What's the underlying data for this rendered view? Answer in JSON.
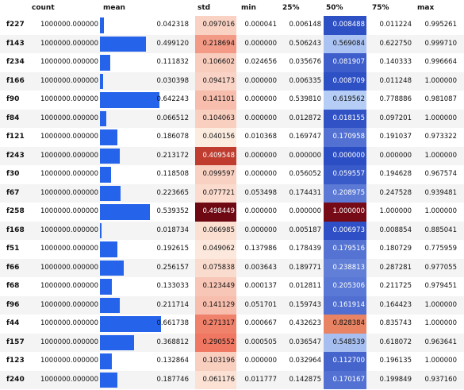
{
  "headers": {
    "count": "count",
    "mean": "mean",
    "std": "std",
    "min": "min",
    "p25": "25%",
    "p50": "50%",
    "p75": "75%",
    "max": "max"
  },
  "rows": [
    {
      "idx": "f227",
      "count": "1000000.000000",
      "mean": "0.042318",
      "std": "0.097016",
      "min": "0.000041",
      "p25": "0.006148",
      "p50": "0.008488",
      "p75": "0.011224",
      "max": "0.995261"
    },
    {
      "idx": "f143",
      "count": "1000000.000000",
      "mean": "0.499120",
      "std": "0.218694",
      "min": "0.000000",
      "p25": "0.506243",
      "p50": "0.569084",
      "p75": "0.622750",
      "max": "0.999710"
    },
    {
      "idx": "f234",
      "count": "1000000.000000",
      "mean": "0.111832",
      "std": "0.106602",
      "min": "0.024656",
      "p25": "0.035676",
      "p50": "0.081907",
      "p75": "0.140333",
      "max": "0.996664"
    },
    {
      "idx": "f166",
      "count": "1000000.000000",
      "mean": "0.030398",
      "std": "0.094173",
      "min": "0.000000",
      "p25": "0.006335",
      "p50": "0.008709",
      "p75": "0.011248",
      "max": "1.000000"
    },
    {
      "idx": "f90",
      "count": "1000000.000000",
      "mean": "0.642243",
      "std": "0.141101",
      "min": "0.000000",
      "p25": "0.539810",
      "p50": "0.619562",
      "p75": "0.778886",
      "max": "0.981087"
    },
    {
      "idx": "f84",
      "count": "1000000.000000",
      "mean": "0.066512",
      "std": "0.104063",
      "min": "0.000000",
      "p25": "0.012872",
      "p50": "0.018155",
      "p75": "0.097201",
      "max": "1.000000"
    },
    {
      "idx": "f121",
      "count": "1000000.000000",
      "mean": "0.186078",
      "std": "0.040156",
      "min": "0.010368",
      "p25": "0.169747",
      "p50": "0.170958",
      "p75": "0.191037",
      "max": "0.973322"
    },
    {
      "idx": "f243",
      "count": "1000000.000000",
      "mean": "0.213172",
      "std": "0.409548",
      "min": "0.000000",
      "p25": "0.000000",
      "p50": "0.000000",
      "p75": "0.000000",
      "max": "1.000000"
    },
    {
      "idx": "f30",
      "count": "1000000.000000",
      "mean": "0.118508",
      "std": "0.099597",
      "min": "0.000000",
      "p25": "0.056052",
      "p50": "0.059557",
      "p75": "0.194628",
      "max": "0.967574"
    },
    {
      "idx": "f67",
      "count": "1000000.000000",
      "mean": "0.223665",
      "std": "0.077721",
      "min": "0.053498",
      "p25": "0.174431",
      "p50": "0.208975",
      "p75": "0.247528",
      "max": "0.939481"
    },
    {
      "idx": "f258",
      "count": "1000000.000000",
      "mean": "0.539352",
      "std": "0.498449",
      "min": "0.000000",
      "p25": "0.000000",
      "p50": "1.000000",
      "p75": "1.000000",
      "max": "1.000000"
    },
    {
      "idx": "f168",
      "count": "1000000.000000",
      "mean": "0.018734",
      "std": "0.066985",
      "min": "0.000000",
      "p25": "0.005187",
      "p50": "0.006973",
      "p75": "0.008854",
      "max": "0.885041"
    },
    {
      "idx": "f51",
      "count": "1000000.000000",
      "mean": "0.192615",
      "std": "0.049062",
      "min": "0.137986",
      "p25": "0.178439",
      "p50": "0.179516",
      "p75": "0.180729",
      "max": "0.775959"
    },
    {
      "idx": "f66",
      "count": "1000000.000000",
      "mean": "0.256157",
      "std": "0.075838",
      "min": "0.003643",
      "p25": "0.189771",
      "p50": "0.238813",
      "p75": "0.287281",
      "max": "0.977055"
    },
    {
      "idx": "f68",
      "count": "1000000.000000",
      "mean": "0.133033",
      "std": "0.123449",
      "min": "0.000137",
      "p25": "0.012811",
      "p50": "0.205306",
      "p75": "0.211725",
      "max": "0.979451"
    },
    {
      "idx": "f96",
      "count": "1000000.000000",
      "mean": "0.211714",
      "std": "0.141129",
      "min": "0.051701",
      "p25": "0.159743",
      "p50": "0.161914",
      "p75": "0.164423",
      "max": "1.000000"
    },
    {
      "idx": "f44",
      "count": "1000000.000000",
      "mean": "0.661738",
      "std": "0.271317",
      "min": "0.000667",
      "p25": "0.432623",
      "p50": "0.828384",
      "p75": "0.835743",
      "max": "1.000000"
    },
    {
      "idx": "f157",
      "count": "1000000.000000",
      "mean": "0.368812",
      "std": "0.290552",
      "min": "0.000505",
      "p25": "0.036547",
      "p50": "0.548539",
      "p75": "0.618072",
      "max": "0.963641"
    },
    {
      "idx": "f123",
      "count": "1000000.000000",
      "mean": "0.132864",
      "std": "0.103196",
      "min": "0.000000",
      "p25": "0.032964",
      "p50": "0.112700",
      "p75": "0.196135",
      "max": "1.000000"
    },
    {
      "idx": "f240",
      "count": "1000000.000000",
      "mean": "0.187746",
      "std": "0.061176",
      "min": "0.011777",
      "p25": "0.142875",
      "p50": "0.170167",
      "p75": "0.199849",
      "max": "0.937160"
    }
  ]
}
